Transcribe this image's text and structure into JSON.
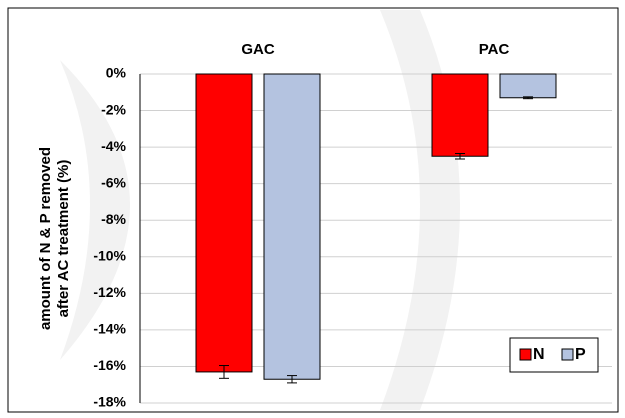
{
  "chart_data": {
    "type": "bar",
    "categories": [
      "GAC",
      "PAC"
    ],
    "series": [
      {
        "name": "N",
        "color": "#ff0000",
        "values": [
          -16.3,
          -4.5
        ],
        "errors": [
          0.35,
          0.15
        ]
      },
      {
        "name": "P",
        "color": "#b4c3e0",
        "values": [
          -16.7,
          -1.3
        ],
        "errors": [
          0.2,
          0.05
        ]
      }
    ],
    "y_label": [
      "amount of N & P removed",
      "after AC treatment (%)"
    ],
    "ylim": [
      -18,
      0
    ],
    "yticks": [
      {
        "value": 0,
        "label": "0%"
      },
      {
        "value": -2,
        "label": "-2%"
      },
      {
        "value": -4,
        "label": "-4%"
      },
      {
        "value": -6,
        "label": "-6%"
      },
      {
        "value": -8,
        "label": "-8%"
      },
      {
        "value": -10,
        "label": "-10%"
      },
      {
        "value": -12,
        "label": "-12%"
      },
      {
        "value": -14,
        "label": "-14%"
      },
      {
        "value": -16,
        "label": "-16%"
      },
      {
        "value": -18,
        "label": "-18%"
      }
    ],
    "grid": true,
    "legend": "bottom-right"
  }
}
